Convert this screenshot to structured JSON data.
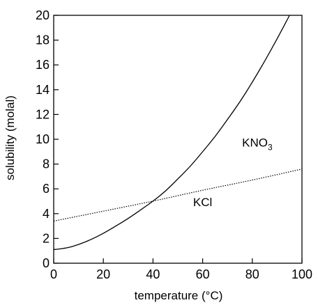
{
  "chart_data": {
    "type": "line",
    "title": "",
    "xlabel": "temperature (°C)",
    "ylabel": "solubility (molal)",
    "xlim": [
      0,
      100
    ],
    "ylim": [
      0,
      20
    ],
    "xticks": [
      0,
      20,
      40,
      60,
      80,
      100
    ],
    "yticks": [
      0,
      2,
      4,
      6,
      8,
      10,
      12,
      14,
      16,
      18,
      20
    ],
    "xtick_labels": [
      "0",
      "20",
      "40",
      "60",
      "80",
      "100"
    ],
    "ytick_labels": [
      "0",
      "2",
      "4",
      "6",
      "8",
      "10",
      "12",
      "14",
      "16",
      "18",
      "20"
    ],
    "grid": false,
    "legend": "none",
    "series": [
      {
        "name": "KNO3",
        "label_main": "KNO",
        "label_sub": "3",
        "style": "solid",
        "color": "#000000",
        "x": [
          0,
          5,
          10,
          15,
          20,
          25,
          30,
          35,
          40,
          45,
          50,
          55,
          60,
          65,
          70,
          75,
          80,
          85,
          90,
          95
        ],
        "y": [
          1.1,
          1.2,
          1.5,
          1.9,
          2.4,
          3.0,
          3.6,
          4.3,
          5.0,
          5.8,
          6.8,
          7.8,
          9.0,
          10.2,
          11.6,
          13.0,
          14.6,
          16.3,
          18.1,
          20.0
        ]
      },
      {
        "name": "KCl",
        "label_main": "KCl",
        "label_sub": "",
        "style": "dotted",
        "color": "#000000",
        "x": [
          0,
          20,
          40,
          60,
          80,
          100
        ],
        "y": [
          3.4,
          4.2,
          5.0,
          5.9,
          6.7,
          7.6
        ]
      }
    ]
  }
}
